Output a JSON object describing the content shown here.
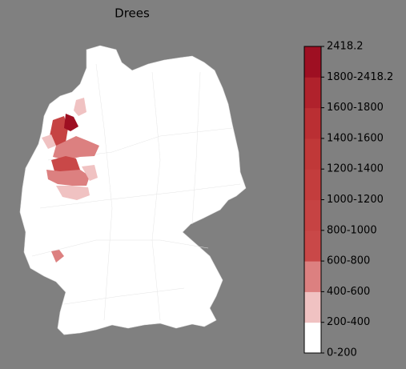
{
  "title": "Drees",
  "colorbar": {
    "labels": [
      "0-200",
      "200-400",
      "400-600",
      "600-800",
      "800-1000",
      "1000-1200",
      "1200-1400",
      "1400-1600",
      "1600-1800",
      "1800-2418.2",
      "2418.2"
    ],
    "colors": [
      "#ffffff",
      "#f0c2c2",
      "#dc8080",
      "#c94848",
      "#c64343",
      "#c33d3d",
      "#c03838",
      "#ba2f33",
      "#b0222c",
      "#9e0f22"
    ]
  }
}
